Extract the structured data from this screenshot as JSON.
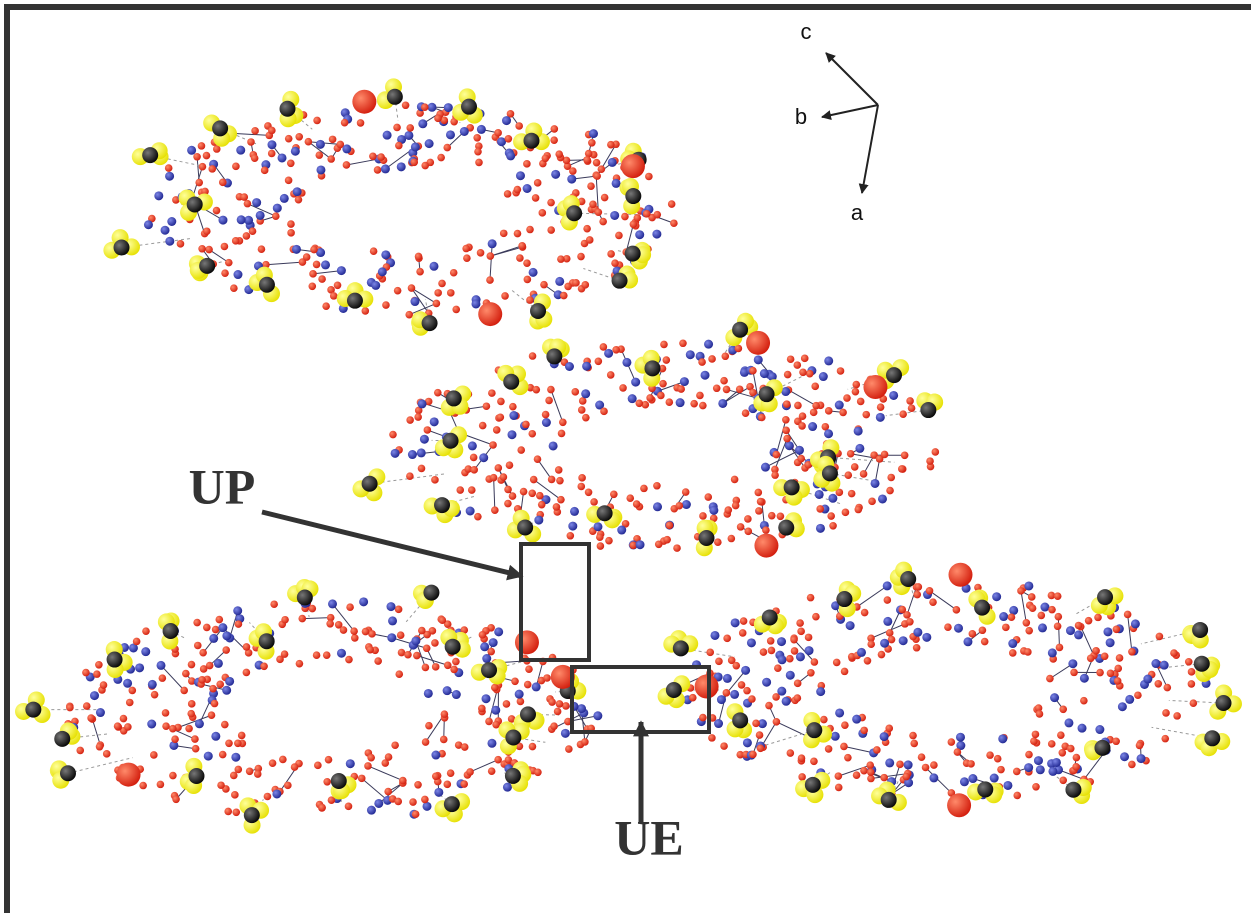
{
  "axes": [
    {
      "label": "c"
    },
    {
      "label": "b"
    },
    {
      "label": "a"
    }
  ],
  "annotations": [
    {
      "label": "UP"
    },
    {
      "label": "UE"
    }
  ]
}
